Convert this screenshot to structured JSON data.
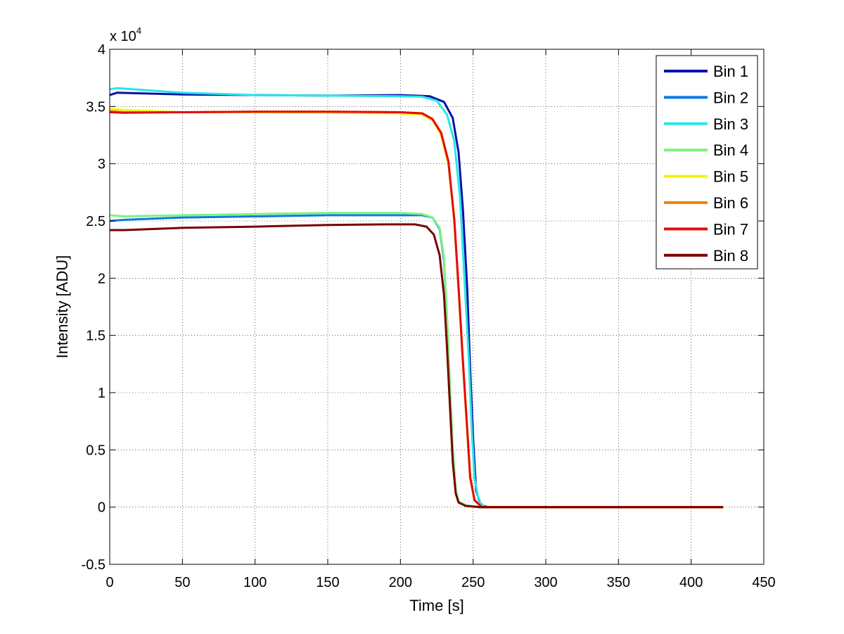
{
  "chart_data": {
    "type": "line",
    "xlabel": "Time [s]",
    "ylabel": "Intensity [ADU]",
    "xlim": [
      0,
      450
    ],
    "ylim": [
      -5000,
      40000
    ],
    "xticks": [
      0,
      50,
      100,
      150,
      200,
      250,
      300,
      350,
      400,
      450
    ],
    "yticks": [
      -5000,
      0,
      5000,
      10000,
      15000,
      20000,
      25000,
      30000,
      35000,
      40000
    ],
    "ytick_labels": [
      "-0.5",
      "0",
      "0.5",
      "1",
      "1.5",
      "2",
      "2.5",
      "3",
      "3.5",
      "4"
    ],
    "y_exponent_label": "x 10",
    "y_exponent_power": "4",
    "grid": true,
    "legend_position": "top-right",
    "series": [
      {
        "name": "Bin 1",
        "color": "#0a12a8",
        "points": [
          [
            0,
            36000
          ],
          [
            5,
            36200
          ],
          [
            50,
            36050
          ],
          [
            100,
            36000
          ],
          [
            150,
            35950
          ],
          [
            200,
            36000
          ],
          [
            220,
            35900
          ],
          [
            230,
            35400
          ],
          [
            236,
            34000
          ],
          [
            240,
            31000
          ],
          [
            243,
            26000
          ],
          [
            246,
            19000
          ],
          [
            248,
            12000
          ],
          [
            250,
            6000
          ],
          [
            252,
            1500
          ],
          [
            255,
            200
          ],
          [
            260,
            0
          ],
          [
            300,
            0
          ],
          [
            350,
            0
          ],
          [
            400,
            0
          ],
          [
            422,
            0
          ]
        ]
      },
      {
        "name": "Bin 2",
        "color": "#0a7ae6",
        "points": [
          [
            0,
            25000
          ],
          [
            10,
            25100
          ],
          [
            50,
            25300
          ],
          [
            100,
            25400
          ],
          [
            150,
            25500
          ],
          [
            200,
            25500
          ],
          [
            215,
            25500
          ],
          [
            222,
            25300
          ],
          [
            227,
            24300
          ],
          [
            230,
            21500
          ],
          [
            232,
            16500
          ],
          [
            234,
            10500
          ],
          [
            236,
            5000
          ],
          [
            238,
            1500
          ],
          [
            240,
            500
          ],
          [
            245,
            150
          ],
          [
            255,
            0
          ],
          [
            300,
            0
          ],
          [
            350,
            0
          ],
          [
            400,
            0
          ],
          [
            422,
            0
          ]
        ]
      },
      {
        "name": "Bin 3",
        "color": "#2ae6e6",
        "points": [
          [
            0,
            36500
          ],
          [
            5,
            36600
          ],
          [
            50,
            36200
          ],
          [
            100,
            36000
          ],
          [
            150,
            35950
          ],
          [
            200,
            35900
          ],
          [
            215,
            35850
          ],
          [
            225,
            35500
          ],
          [
            232,
            34300
          ],
          [
            237,
            32000
          ],
          [
            241,
            27000
          ],
          [
            244,
            20000
          ],
          [
            247,
            13000
          ],
          [
            249,
            7000
          ],
          [
            251,
            2500
          ],
          [
            254,
            500
          ],
          [
            258,
            0
          ],
          [
            300,
            0
          ],
          [
            350,
            0
          ],
          [
            400,
            0
          ],
          [
            422,
            0
          ]
        ]
      },
      {
        "name": "Bin 4",
        "color": "#7ef27e",
        "points": [
          [
            0,
            25500
          ],
          [
            10,
            25400
          ],
          [
            50,
            25500
          ],
          [
            100,
            25600
          ],
          [
            150,
            25700
          ],
          [
            200,
            25700
          ],
          [
            215,
            25600
          ],
          [
            222,
            25300
          ],
          [
            227,
            24400
          ],
          [
            230,
            21800
          ],
          [
            232,
            16800
          ],
          [
            234,
            10800
          ],
          [
            236,
            5200
          ],
          [
            238,
            1600
          ],
          [
            240,
            500
          ],
          [
            245,
            150
          ],
          [
            255,
            0
          ],
          [
            300,
            0
          ],
          [
            350,
            0
          ],
          [
            400,
            0
          ],
          [
            422,
            0
          ]
        ]
      },
      {
        "name": "Bin 5",
        "color": "#f5f50a",
        "points": [
          [
            0,
            34800
          ],
          [
            10,
            34700
          ],
          [
            50,
            34500
          ],
          [
            100,
            34500
          ],
          [
            150,
            34450
          ],
          [
            200,
            34400
          ],
          [
            215,
            34300
          ],
          [
            222,
            33800
          ],
          [
            228,
            32500
          ],
          [
            233,
            30000
          ],
          [
            237,
            25000
          ],
          [
            240,
            19000
          ],
          [
            243,
            12500
          ],
          [
            246,
            6500
          ],
          [
            248,
            2500
          ],
          [
            251,
            600
          ],
          [
            256,
            0
          ],
          [
            300,
            0
          ],
          [
            350,
            0
          ],
          [
            400,
            0
          ],
          [
            422,
            0
          ]
        ]
      },
      {
        "name": "Bin 6",
        "color": "#f2820a",
        "points": [
          [
            0,
            34600
          ],
          [
            10,
            34500
          ],
          [
            50,
            34500
          ],
          [
            100,
            34550
          ],
          [
            150,
            34550
          ],
          [
            200,
            34500
          ],
          [
            215,
            34400
          ],
          [
            222,
            33900
          ],
          [
            228,
            32700
          ],
          [
            233,
            30200
          ],
          [
            237,
            25200
          ],
          [
            240,
            19200
          ],
          [
            243,
            12700
          ],
          [
            246,
            6700
          ],
          [
            248,
            2600
          ],
          [
            251,
            600
          ],
          [
            256,
            0
          ],
          [
            300,
            0
          ],
          [
            350,
            0
          ],
          [
            400,
            0
          ],
          [
            422,
            0
          ]
        ]
      },
      {
        "name": "Bin 7",
        "color": "#e60a0a",
        "points": [
          [
            0,
            34500
          ],
          [
            10,
            34450
          ],
          [
            50,
            34500
          ],
          [
            100,
            34550
          ],
          [
            150,
            34550
          ],
          [
            200,
            34500
          ],
          [
            215,
            34400
          ],
          [
            222,
            33900
          ],
          [
            228,
            32700
          ],
          [
            233,
            30200
          ],
          [
            237,
            25200
          ],
          [
            240,
            19200
          ],
          [
            243,
            12700
          ],
          [
            246,
            6700
          ],
          [
            248,
            2600
          ],
          [
            251,
            600
          ],
          [
            256,
            0
          ],
          [
            300,
            0
          ],
          [
            350,
            0
          ],
          [
            400,
            0
          ],
          [
            422,
            0
          ]
        ]
      },
      {
        "name": "Bin 8",
        "color": "#7a0000",
        "points": [
          [
            0,
            24200
          ],
          [
            10,
            24200
          ],
          [
            50,
            24400
          ],
          [
            100,
            24500
          ],
          [
            150,
            24650
          ],
          [
            190,
            24700
          ],
          [
            210,
            24700
          ],
          [
            218,
            24500
          ],
          [
            223,
            23800
          ],
          [
            227,
            22000
          ],
          [
            230,
            18500
          ],
          [
            232,
            14000
          ],
          [
            234,
            9000
          ],
          [
            236,
            4000
          ],
          [
            238,
            1200
          ],
          [
            240,
            400
          ],
          [
            245,
            100
          ],
          [
            255,
            0
          ],
          [
            300,
            0
          ],
          [
            350,
            0
          ],
          [
            400,
            0
          ],
          [
            422,
            0
          ]
        ]
      }
    ]
  }
}
